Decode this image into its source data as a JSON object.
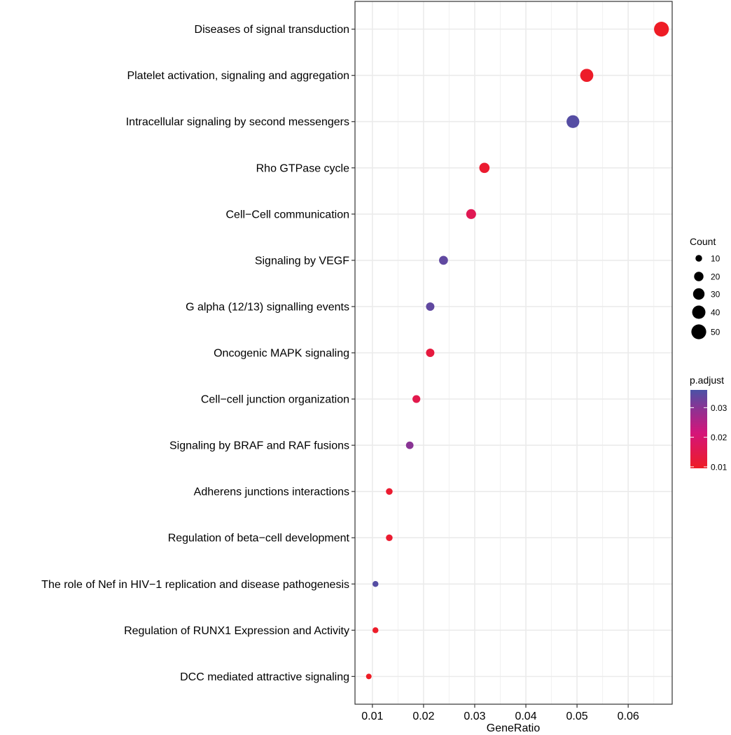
{
  "chart_data": {
    "type": "scatter",
    "title": "",
    "xlabel": "GeneRatio",
    "ylabel": "",
    "xlim": [
      0.0066,
      0.0686
    ],
    "x_ticks": [
      0.01,
      0.02,
      0.03,
      0.04,
      0.05,
      0.06
    ],
    "x_tick_labels": [
      "0.01",
      "0.02",
      "0.03",
      "0.04",
      "0.05",
      "0.06"
    ],
    "grid": true,
    "categories": [
      "Diseases of signal transduction",
      "Platelet activation, signaling and aggregation",
      "Intracellular signaling by second messengers",
      "Rho GTPase cycle",
      "Cell−Cell communication",
      "Signaling by VEGF",
      "G alpha (12/13) signalling events",
      "Oncogenic MAPK signaling",
      "Cell−cell junction organization",
      "Signaling by BRAF and RAF fusions",
      "Adherens junctions interactions",
      "Regulation of beta−cell development",
      "The role of Nef in HIV−1 replication and disease pathogenesis",
      "Regulation of RUNX1 Expression and Activity",
      "DCC mediated attractive signaling"
    ],
    "gene_ratio": [
      0.0665,
      0.0519,
      0.0492,
      0.0319,
      0.0293,
      0.0239,
      0.0213,
      0.0213,
      0.0186,
      0.0173,
      0.0133,
      0.0133,
      0.0106,
      0.0106,
      0.0093
    ],
    "count": [
      50,
      39,
      37,
      24,
      22,
      18,
      16,
      16,
      14,
      13,
      10,
      10,
      8,
      8,
      7
    ],
    "p_adjust": [
      0.009,
      0.01,
      0.035,
      0.011,
      0.016,
      0.034,
      0.034,
      0.013,
      0.015,
      0.03,
      0.011,
      0.011,
      0.035,
      0.01,
      0.009
    ],
    "legend_size": {
      "title": "Count",
      "values": [
        10,
        20,
        30,
        40,
        50
      ],
      "labels": [
        "10",
        "20",
        "30",
        "40",
        "50"
      ]
    },
    "legend_color": {
      "title": "p.adjust",
      "range": [
        0.0095,
        0.036
      ],
      "ticks": [
        0.01,
        0.02,
        0.03
      ],
      "tick_labels": [
        "0.01",
        "0.02",
        "0.03"
      ],
      "low_color": "#EE1C25",
      "high_color": "#4B52A6"
    },
    "legend_placement": "right"
  }
}
